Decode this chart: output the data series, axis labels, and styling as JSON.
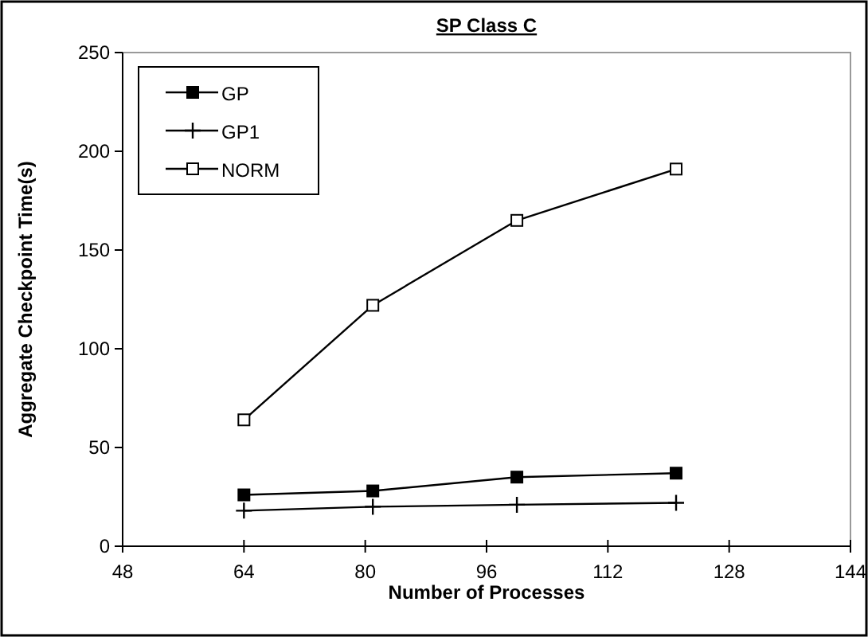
{
  "chart_data": {
    "type": "line",
    "title": "SP Class C",
    "xlabel": "Number of Processes",
    "ylabel": "Aggregate Checkpoint Time(s)",
    "x": [
      64,
      81,
      100,
      121
    ],
    "series": [
      {
        "name": "GP",
        "color": "#000000",
        "marker": "square",
        "values": [
          26,
          28,
          35,
          37
        ]
      },
      {
        "name": "GP1",
        "color": "#000000",
        "marker": "cross",
        "values": [
          18,
          20,
          21,
          22
        ]
      },
      {
        "name": "NORM",
        "color": "#000000",
        "marker": "square-open",
        "values": [
          64,
          122,
          165,
          191
        ]
      }
    ],
    "xlim": [
      48,
      144
    ],
    "xticks": [
      48,
      64,
      80,
      96,
      112,
      128,
      144
    ],
    "ylim": [
      0,
      250
    ],
    "yticks": [
      0,
      50,
      100,
      150,
      200,
      250
    ],
    "grid": false,
    "legend": "top left",
    "line_style": "solid"
  }
}
